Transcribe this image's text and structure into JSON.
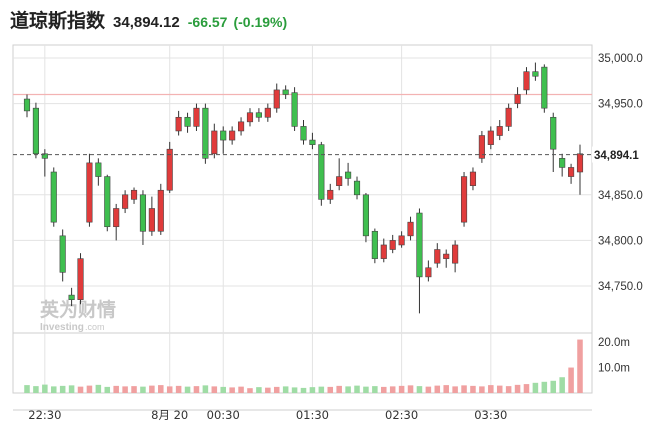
{
  "header": {
    "title": "道琼斯指数",
    "price": "34,894.12",
    "change": "-66.57",
    "change_pct": "(-0.19%)"
  },
  "watermark": {
    "text_cn": "英为财情",
    "text_en": "Investing",
    "suffix": ".com"
  },
  "colors": {
    "up": "#e03b3b",
    "down": "#3fbf4f",
    "grid": "#e3e3e3",
    "axis_text": "#333333",
    "ref_line": "#f3b3b3",
    "vol_up": "#f0a0a0",
    "vol_down": "#9fdca5"
  },
  "chart_data": {
    "type": "candlestick",
    "ylim": [
      34705,
      35015
    ],
    "y_ticks": [
      {
        "v": 35000,
        "label": "35,000.0"
      },
      {
        "v": 34950,
        "label": "34,950.0"
      },
      {
        "v": 34850,
        "label": "34,850.0"
      },
      {
        "v": 34800,
        "label": "34,800.0"
      },
      {
        "v": 34750,
        "label": "34,750.0"
      }
    ],
    "last_price": {
      "value": 34894.12,
      "label": "34,894.1"
    },
    "ref_line": 34960,
    "x_ticks": [
      {
        "i": 2,
        "label": "22:30"
      },
      {
        "i": 16,
        "label": "8月 20"
      },
      {
        "i": 22,
        "label": "00:30"
      },
      {
        "i": 32,
        "label": "01:30"
      },
      {
        "i": 42,
        "label": "02:30"
      },
      {
        "i": 52,
        "label": "03:30"
      }
    ],
    "candles": [
      [
        34955,
        34942,
        34960,
        34935
      ],
      [
        34945,
        34895,
        34951,
        34890
      ],
      [
        34895,
        34890,
        34900,
        34870
      ],
      [
        34875,
        34820,
        34880,
        34815
      ],
      [
        34805,
        34765,
        34812,
        34755
      ],
      [
        34740,
        34735,
        34748,
        34728
      ],
      [
        34735,
        34780,
        34786,
        34730
      ],
      [
        34820,
        34885,
        34895,
        34815
      ],
      [
        34885,
        34870,
        34890,
        34860
      ],
      [
        34870,
        34815,
        34872,
        34810
      ],
      [
        34815,
        34835,
        34840,
        34800
      ],
      [
        34835,
        34850,
        34855,
        34830
      ],
      [
        34845,
        34855,
        34858,
        34840
      ],
      [
        34850,
        34810,
        34855,
        34795
      ],
      [
        34810,
        34835,
        34848,
        34805
      ],
      [
        34810,
        34855,
        34862,
        34806
      ],
      [
        34855,
        34900,
        34908,
        34852
      ],
      [
        34920,
        34935,
        34942,
        34915
      ],
      [
        34935,
        34925,
        34940,
        34918
      ],
      [
        34925,
        34945,
        34950,
        34920
      ],
      [
        34945,
        34890,
        34950,
        34884
      ],
      [
        34895,
        34920,
        34928,
        34890
      ],
      [
        34920,
        34910,
        34925,
        34895
      ],
      [
        34910,
        34920,
        34925,
        34905
      ],
      [
        34920,
        34930,
        34935,
        34915
      ],
      [
        34930,
        34940,
        34945,
        34925
      ],
      [
        34940,
        34935,
        34945,
        34930
      ],
      [
        34935,
        34945,
        34950,
        34930
      ],
      [
        34945,
        34965,
        34972,
        34940
      ],
      [
        34965,
        34960,
        34970,
        34955
      ],
      [
        34962,
        34925,
        34968,
        34920
      ],
      [
        34925,
        34910,
        34932,
        34905
      ],
      [
        34910,
        34905,
        34918,
        34900
      ],
      [
        34905,
        34845,
        34908,
        34838
      ],
      [
        34845,
        34855,
        34862,
        34840
      ],
      [
        34860,
        34870,
        34890,
        34855
      ],
      [
        34875,
        34868,
        34885,
        34860
      ],
      [
        34865,
        34850,
        34870,
        34845
      ],
      [
        34850,
        34805,
        34852,
        34798
      ],
      [
        34810,
        34780,
        34813,
        34775
      ],
      [
        34780,
        34795,
        34802,
        34776
      ],
      [
        34790,
        34800,
        34806,
        34786
      ],
      [
        34795,
        34805,
        34810,
        34792
      ],
      [
        34805,
        34820,
        34826,
        34800
      ],
      [
        34830,
        34760,
        34835,
        34720
      ],
      [
        34760,
        34770,
        34778,
        34755
      ],
      [
        34775,
        34790,
        34797,
        34770
      ],
      [
        34780,
        34785,
        34790,
        34770
      ],
      [
        34775,
        34795,
        34800,
        34765
      ],
      [
        34820,
        34870,
        34875,
        34815
      ],
      [
        34860,
        34875,
        34880,
        34855
      ],
      [
        34890,
        34915,
        34920,
        34885
      ],
      [
        34905,
        34920,
        34925,
        34900
      ],
      [
        34915,
        34925,
        34932,
        34910
      ],
      [
        34925,
        34945,
        34950,
        34920
      ],
      [
        34950,
        34960,
        34968,
        34945
      ],
      [
        34965,
        34985,
        34990,
        34960
      ],
      [
        34985,
        34980,
        34995,
        34975
      ],
      [
        34990,
        34945,
        34993,
        34940
      ],
      [
        34935,
        34900,
        34940,
        34875
      ],
      [
        34890,
        34880,
        34895,
        34870
      ],
      [
        34870,
        34880,
        34884,
        34862
      ],
      [
        34875,
        34895,
        34905,
        34850
      ]
    ],
    "volume": {
      "ticks": [
        {
          "v": 20,
          "label": "20.0m"
        },
        {
          "v": 10,
          "label": "10.0m"
        }
      ],
      "max": 22,
      "values": [
        3.1,
        2.7,
        3.3,
        2.6,
        2.8,
        3.0,
        2.5,
        2.9,
        3.2,
        2.4,
        2.8,
        2.6,
        2.7,
        2.5,
        2.9,
        3.1,
        2.6,
        2.8,
        2.5,
        2.7,
        3.0,
        2.6,
        2.4,
        2.2,
        2.5,
        1.9,
        2.3,
        2.1,
        2.4,
        2.6,
        2.2,
        2.0,
        2.3,
        2.5,
        2.4,
        2.8,
        2.6,
        2.9,
        2.5,
        2.7,
        2.4,
        2.6,
        2.8,
        3.0,
        2.7,
        2.5,
        2.9,
        3.1,
        2.6,
        3.0,
        2.8,
        2.6,
        3.1,
        2.9,
        2.7,
        3.2,
        3.5,
        4.0,
        4.4,
        4.8,
        6.2,
        10.0,
        21.0
      ]
    }
  }
}
